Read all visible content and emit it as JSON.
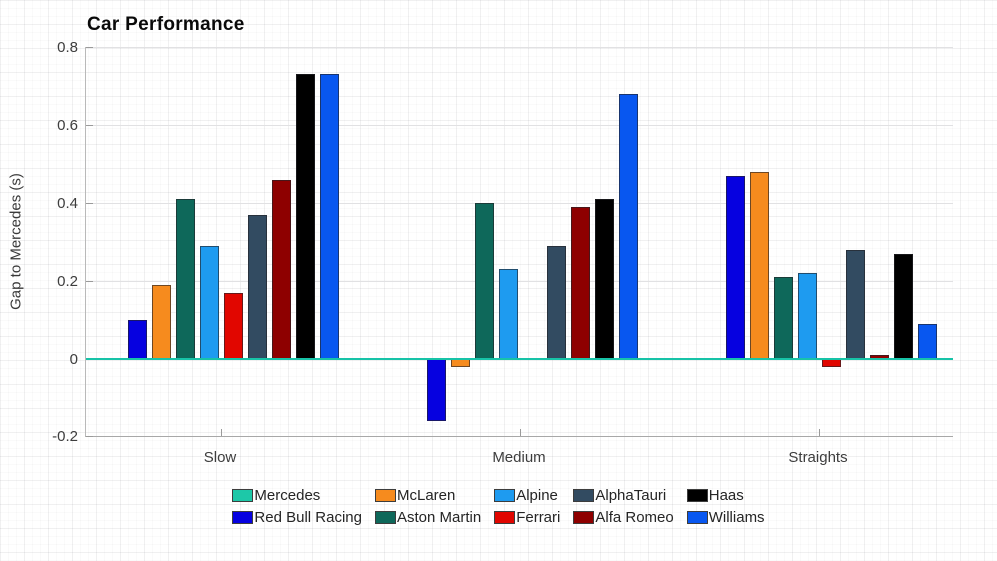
{
  "chart_data": {
    "type": "bar",
    "title": "Car Performance",
    "xlabel": "",
    "ylabel": "Gap to Mercedes (s)",
    "categories": [
      "Slow",
      "Medium",
      "Straights"
    ],
    "ylim": [
      -0.2,
      0.8
    ],
    "yticks": [
      {
        "value": 0.8,
        "label": "0.8"
      },
      {
        "value": 0.6,
        "label": "0.6"
      },
      {
        "value": 0.4,
        "label": "0.4"
      },
      {
        "value": 0.2,
        "label": "0.2"
      },
      {
        "value": 0,
        "label": "0"
      },
      {
        "value": -0.2,
        "label": "-0.2"
      }
    ],
    "grid": true,
    "zero_line_color": "#17C3A8",
    "legend_position": "bottom",
    "legend_columns": 5,
    "series": [
      {
        "name": "Mercedes",
        "color": "#1DC8A8",
        "values": [
          0,
          0,
          0
        ]
      },
      {
        "name": "Red Bull Racing",
        "color": "#0601E0",
        "values": [
          0.1,
          -0.16,
          0.47
        ]
      },
      {
        "name": "McLaren",
        "color": "#F68B1E",
        "values": [
          0.19,
          -0.02,
          0.48
        ]
      },
      {
        "name": "Aston Martin",
        "color": "#0E685A",
        "values": [
          0.41,
          0.4,
          0.21
        ]
      },
      {
        "name": "Alpine",
        "color": "#1E9BF0",
        "values": [
          0.29,
          0.23,
          0.22
        ]
      },
      {
        "name": "Ferrari",
        "color": "#E10600",
        "values": [
          0.17,
          0,
          -0.02
        ]
      },
      {
        "name": "AlphaTauri",
        "color": "#324B61",
        "values": [
          0.37,
          0.29,
          0.28
        ]
      },
      {
        "name": "Alfa Romeo",
        "color": "#8E0000",
        "values": [
          0.46,
          0.39,
          0.01
        ]
      },
      {
        "name": "Haas",
        "color": "#000000",
        "values": [
          0.73,
          0.41,
          0.27
        ]
      },
      {
        "name": "Williams",
        "color": "#0857F0",
        "values": [
          0.73,
          0.68,
          0.09
        ]
      }
    ],
    "legend_rows": [
      [
        "Mercedes",
        "McLaren",
        "Alpine",
        "AlphaTauri",
        "Haas"
      ],
      [
        "Red Bull Racing",
        "Aston Martin",
        "Ferrari",
        "Alfa Romeo",
        "Williams"
      ]
    ]
  }
}
